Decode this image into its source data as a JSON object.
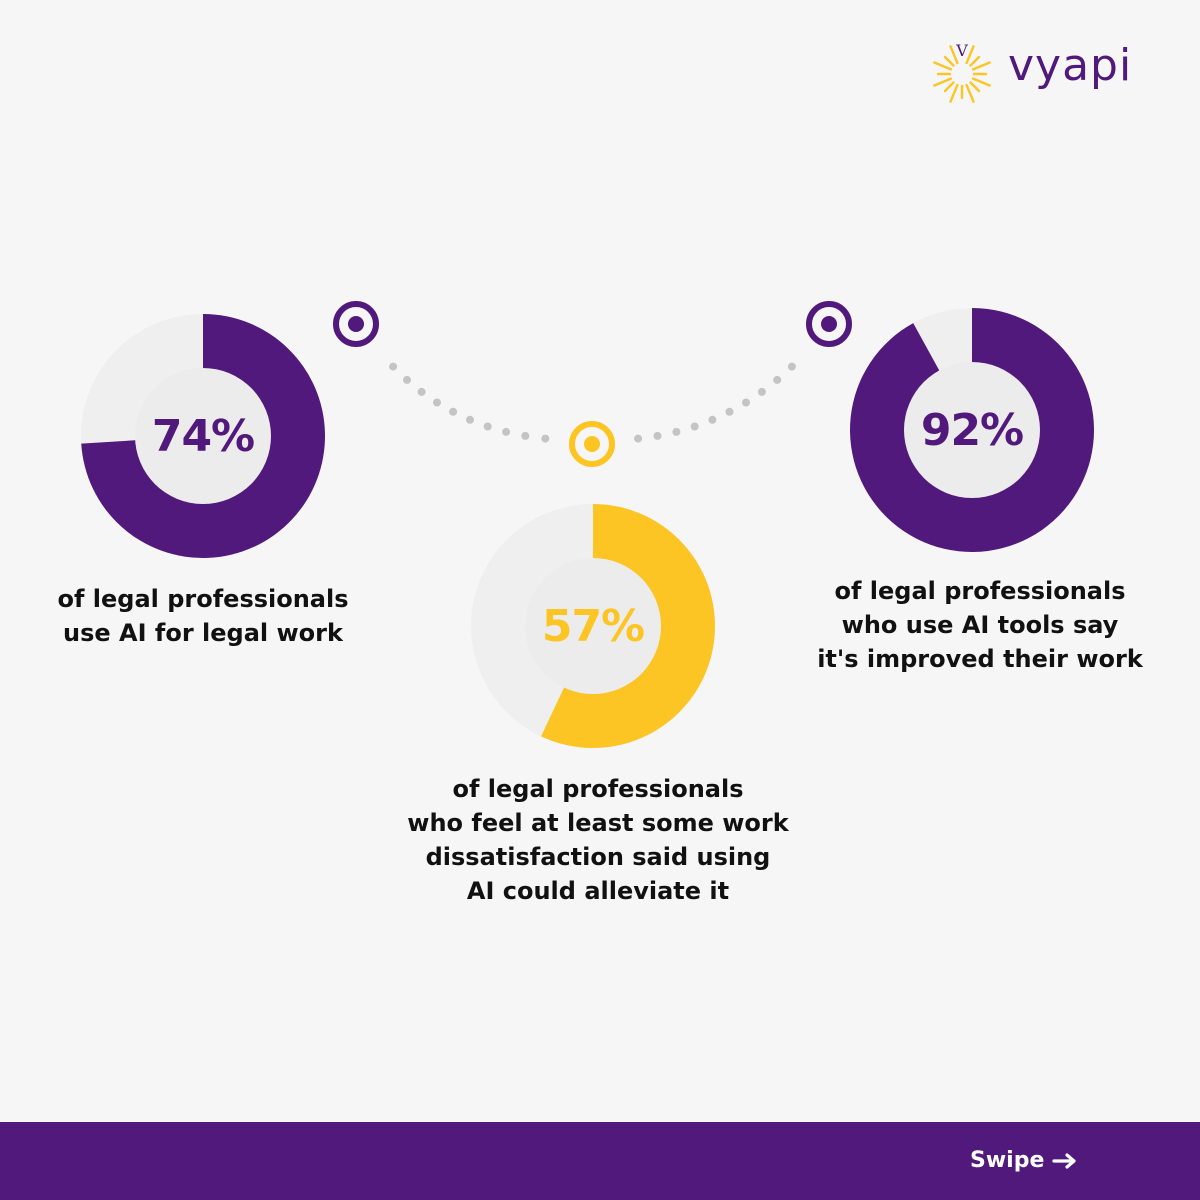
{
  "brand": {
    "name": "vyapi",
    "mark_letter": "V",
    "primary_color": "#51197b",
    "accent_color": "#fcc524"
  },
  "chart_data": {
    "type": "pie",
    "series": [
      {
        "value": 74,
        "label": "74%",
        "color": "#51197b",
        "caption": [
          "of legal professionals",
          "use AI for legal work"
        ]
      },
      {
        "value": 57,
        "label": "57%",
        "color": "#fcc524",
        "caption": [
          "of legal professionals",
          "who feel at least some work",
          "dissatisfaction said using",
          "AI could alleviate it"
        ]
      },
      {
        "value": 92,
        "label": "92%",
        "color": "#51197b",
        "caption": [
          "of legal professionals",
          "who use AI tools say",
          "it's improved their work"
        ]
      }
    ]
  },
  "footer": {
    "swipe_label": "Swipe",
    "arrow_icon": "arrow-right-icon"
  }
}
